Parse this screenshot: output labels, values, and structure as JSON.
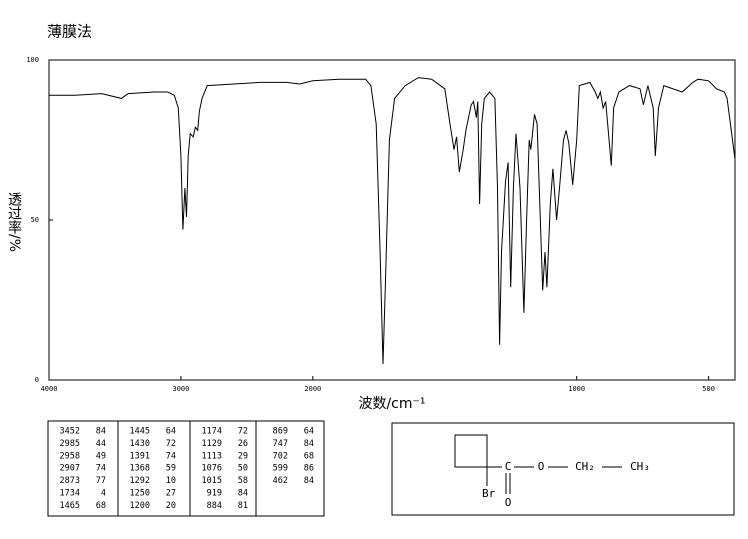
{
  "chart_data": {
    "type": "line",
    "title": "薄膜法",
    "xlabel": "波数/cm⁻¹",
    "ylabel": "透过率/%",
    "color": "#000000",
    "xlim": [
      4000,
      400
    ],
    "xticks": [
      4000,
      3000,
      2000,
      1000,
      500
    ],
    "x_expansion": {
      "below": 2000,
      "factor": 2
    },
    "ylim": [
      0,
      100
    ],
    "yticks": [
      0,
      50,
      100
    ],
    "x": [
      4000,
      3800,
      3600,
      3452,
      3400,
      3200,
      3100,
      3050,
      3020,
      3000,
      2985,
      2970,
      2958,
      2945,
      2930,
      2907,
      2890,
      2873,
      2860,
      2840,
      2800,
      2600,
      2400,
      2200,
      2100,
      2000,
      1900,
      1800,
      1780,
      1760,
      1745,
      1734,
      1725,
      1710,
      1690,
      1650,
      1600,
      1550,
      1500,
      1480,
      1465,
      1455,
      1445,
      1430,
      1420,
      1400,
      1391,
      1380,
      1375,
      1368,
      1360,
      1350,
      1330,
      1310,
      1300,
      1292,
      1285,
      1270,
      1260,
      1250,
      1240,
      1230,
      1215,
      1200,
      1190,
      1180,
      1174,
      1160,
      1150,
      1140,
      1129,
      1120,
      1113,
      1100,
      1090,
      1076,
      1065,
      1050,
      1040,
      1030,
      1015,
      1000,
      990,
      950,
      930,
      920,
      910,
      900,
      890,
      869,
      860,
      840,
      800,
      760,
      747,
      730,
      710,
      702,
      690,
      670,
      600,
      560,
      540,
      500,
      470,
      440,
      430,
      400
    ],
    "values": [
      89,
      89,
      89.5,
      88,
      89.5,
      90,
      90,
      89,
      85,
      70,
      47,
      60,
      51,
      70,
      77,
      76,
      79,
      78,
      84,
      88,
      92,
      92.5,
      93,
      93,
      92.5,
      93.5,
      94,
      94,
      92,
      80,
      40,
      5,
      30,
      75,
      88,
      92,
      94.5,
      94,
      91,
      80,
      72,
      76,
      65,
      72,
      78,
      86,
      87,
      82,
      87,
      55,
      80,
      88,
      90,
      88,
      60,
      11,
      40,
      62,
      68,
      29,
      60,
      77,
      60,
      21,
      50,
      75,
      72,
      83,
      80,
      55,
      28,
      40,
      29,
      55,
      66,
      50,
      60,
      75,
      78,
      74,
      61,
      75,
      92,
      93,
      90,
      88,
      90,
      85,
      87,
      67,
      85,
      90,
      92,
      91,
      86,
      92,
      85,
      70,
      85,
      92,
      90,
      93,
      94,
      93.5,
      91,
      90,
      88,
      69
    ]
  },
  "peak_table": [
    [
      [
        3452,
        84
      ],
      [
        2985,
        44
      ],
      [
        2958,
        49
      ],
      [
        2907,
        74
      ],
      [
        2873,
        77
      ],
      [
        1734,
        4
      ],
      [
        1465,
        68
      ]
    ],
    [
      [
        1445,
        64
      ],
      [
        1430,
        72
      ],
      [
        1391,
        74
      ],
      [
        1368,
        59
      ],
      [
        1292,
        10
      ],
      [
        1250,
        27
      ],
      [
        1200,
        20
      ]
    ],
    [
      [
        1174,
        72
      ],
      [
        1129,
        26
      ],
      [
        1113,
        29
      ],
      [
        1076,
        50
      ],
      [
        1015,
        58
      ],
      [
        919,
        84
      ],
      [
        884,
        81
      ]
    ],
    [
      [
        869,
        64
      ],
      [
        747,
        84
      ],
      [
        702,
        68
      ],
      [
        599,
        86
      ],
      [
        462,
        84
      ]
    ]
  ],
  "structure": {
    "carbon": "C",
    "ether_oxygen": "O",
    "carbonyl_oxygen": "O",
    "methylene": "CH₂",
    "methyl": "CH₃",
    "bromine": "Br"
  }
}
